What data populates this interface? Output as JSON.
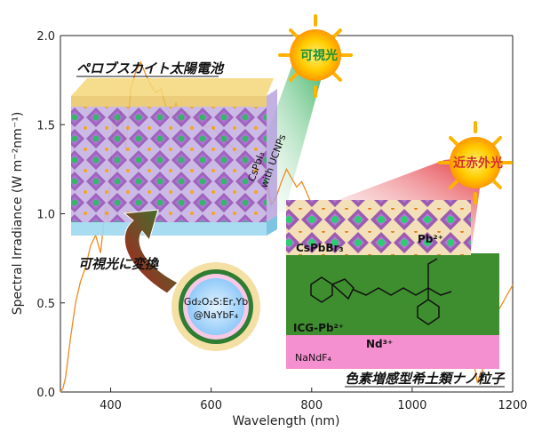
{
  "chart_data": {
    "type": "line",
    "xlabel": "Wavelength (nm)",
    "ylabel": "Spectral Irradiance (W m⁻²nm⁻¹)",
    "xlim": [
      300,
      1200
    ],
    "ylim": [
      0,
      2.0
    ],
    "x_ticks": [
      "400",
      "600",
      "800",
      "1000",
      "1200"
    ],
    "y_ticks": [
      "0.0",
      "0.5",
      "1.0",
      "1.5",
      "2.0"
    ],
    "series": [
      {
        "color": "#f08a1c",
        "x": [
          300,
          305,
          310,
          320,
          330,
          340,
          350,
          360,
          370,
          380,
          390,
          395,
          400,
          405,
          410,
          420,
          430,
          440,
          450,
          460,
          470,
          480,
          490,
          500,
          510,
          520,
          530,
          540,
          550,
          560,
          570,
          580,
          590,
          600,
          610,
          620,
          630,
          640,
          650,
          660,
          670,
          680,
          690,
          700,
          710,
          720,
          730,
          740,
          750,
          760,
          770,
          780,
          790,
          800,
          1080,
          1100,
          1110,
          1120,
          1130,
          1135,
          1140,
          1150,
          1160,
          1170,
          1180,
          1190,
          1200
        ],
        "y": [
          0.0,
          0.02,
          0.08,
          0.3,
          0.5,
          0.62,
          0.7,
          0.82,
          0.88,
          0.78,
          1.05,
          0.95,
          1.25,
          1.55,
          1.45,
          1.58,
          1.35,
          1.7,
          1.8,
          1.85,
          1.78,
          1.72,
          1.68,
          1.7,
          1.6,
          1.55,
          1.62,
          1.5,
          1.58,
          1.55,
          1.52,
          1.55,
          1.48,
          1.5,
          1.46,
          1.44,
          1.4,
          1.38,
          1.34,
          1.36,
          1.28,
          1.25,
          1.2,
          1.35,
          1.18,
          1.05,
          1.1,
          1.18,
          1.25,
          1.2,
          1.15,
          1.18,
          1.12,
          1.05,
          0.65,
          0.55,
          0.45,
          0.2,
          0.05,
          0.1,
          0.12,
          0.25,
          0.35,
          0.45,
          0.5,
          0.55,
          0.6
        ]
      }
    ]
  },
  "labels": {
    "perovskite_cell": "ペロブスカイト太陽電池",
    "visible_light": "可視光",
    "near_infrared": "近赤外光",
    "convert_to_visible": "可視光に変換",
    "nanoparticle": "色素増感型希土類ナノ粒子",
    "cspbi3_line1": "CsPbI₃",
    "cspbi3_line2": "with UCNPs",
    "cspbbr3": "CsPbBr₃",
    "pb2": "Pb²⁺",
    "icg_pb": "ICG-Pb²⁺",
    "nd3": "Nd³⁺",
    "nandf4": "NaNdF₄",
    "core_line1": "Gd₂O₂S:Er,Yb",
    "core_line2": "@NaYbF₄"
  }
}
